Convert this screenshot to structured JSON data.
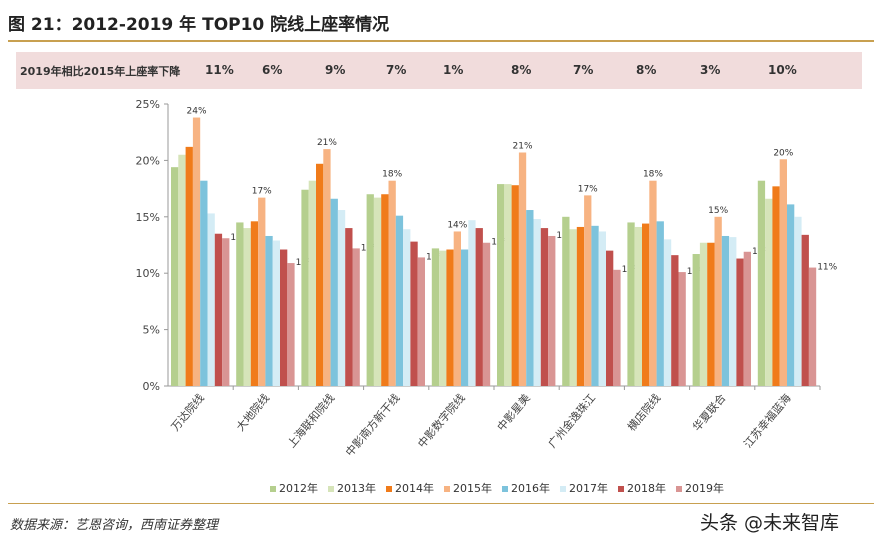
{
  "title": "图 21：2012-2019 年 TOP10 院线上座率情况",
  "band": {
    "label": "2019年相比2015年上座率下降",
    "values": [
      "11%",
      "6%",
      "9%",
      "7%",
      "1%",
      "8%",
      "7%",
      "8%",
      "3%",
      "10%"
    ]
  },
  "source": "数据来源：艺恩咨询，西南证券整理",
  "watermark": "头条 @未来智库",
  "chart_data": {
    "type": "bar",
    "categories": [
      "万达院线",
      "大地院线",
      "上海联和院线",
      "中影南方新干线",
      "中影数字院线",
      "中影星美",
      "广州金逸珠江",
      "横店院线",
      "华夏联合",
      "江苏幸福蓝海"
    ],
    "ylim": [
      0,
      25
    ],
    "yticks": [
      "0%",
      "5%",
      "10%",
      "15%",
      "20%",
      "25%"
    ],
    "legend": "bottom",
    "series": [
      {
        "name": "2012年",
        "color": "#b5cf8e",
        "values": [
          19.4,
          14.5,
          17.4,
          17.0,
          12.2,
          17.9,
          15.0,
          14.5,
          11.7,
          18.2
        ]
      },
      {
        "name": "2013年",
        "color": "#d6e4b9",
        "values": [
          20.5,
          14.0,
          18.2,
          16.7,
          12.0,
          17.9,
          13.9,
          14.1,
          12.7,
          16.6
        ]
      },
      {
        "name": "2014年",
        "color": "#f07b1a",
        "values": [
          21.2,
          14.6,
          19.7,
          17.0,
          12.1,
          17.8,
          14.1,
          14.4,
          12.7,
          17.7
        ]
      },
      {
        "name": "2015年",
        "color": "#f7b382",
        "values": [
          23.8,
          16.7,
          21.0,
          18.2,
          13.7,
          20.7,
          16.9,
          18.2,
          15.0,
          20.1
        ],
        "labels": [
          "24%",
          "17%",
          "21%",
          "18%",
          "14%",
          "21%",
          "17%",
          "18%",
          "15%",
          "20%"
        ]
      },
      {
        "name": "2016年",
        "color": "#7dc3dc",
        "values": [
          18.2,
          13.3,
          16.6,
          15.1,
          12.1,
          15.6,
          14.2,
          14.6,
          13.3,
          16.1
        ]
      },
      {
        "name": "2017年",
        "color": "#d4ecf5",
        "values": [
          15.3,
          12.9,
          15.6,
          13.9,
          14.7,
          14.8,
          13.7,
          13.0,
          13.2,
          15.0
        ]
      },
      {
        "name": "2018年",
        "color": "#c0504d",
        "values": [
          13.5,
          12.1,
          14.0,
          12.8,
          14.0,
          14.0,
          12.0,
          11.6,
          11.3,
          13.4
        ]
      },
      {
        "name": "2019年",
        "color": "#d99594",
        "values": [
          13.1,
          10.9,
          12.2,
          11.4,
          12.7,
          13.3,
          10.3,
          10.1,
          11.9,
          10.5
        ],
        "labels": [
          "13%",
          "11%",
          "12%",
          "11%",
          "13%",
          "13%",
          "10%",
          "10%",
          "12%",
          "11%"
        ]
      }
    ]
  }
}
